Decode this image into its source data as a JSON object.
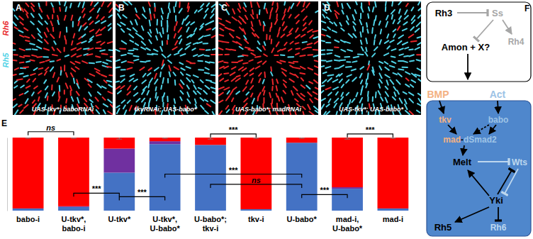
{
  "panels": [
    {
      "letter": "A",
      "caption": "UAS-tkv*; baboRNAi"
    },
    {
      "letter": "B",
      "caption": "tkvRNAi; UAS-babo*"
    },
    {
      "letter": "C",
      "caption": "UAS-babo*; madRNAi"
    },
    {
      "letter": "D",
      "caption": "UAS-tkv*; UAS-babo*"
    }
  ],
  "channel_labels": [
    "Rh6",
    "Rh5"
  ],
  "chart_data": {
    "type": "bar",
    "title": "E",
    "stacked": true,
    "tick_labels": "x",
    "categories": [
      "babo-i",
      "U-tkv*, babo-i",
      "U-tkv*",
      "U-tkv*, U-babo*",
      "U-babo*; tkv-i",
      "tkv-i",
      "U-babo*",
      "mad-i, U-babo*",
      "mad-i"
    ],
    "series": [
      {
        "color": "#4472c4",
        "values": [
          3,
          5,
          52,
          91,
          90,
          2,
          93,
          30,
          3
        ]
      },
      {
        "color": "#7030a0",
        "values": [
          0,
          1,
          33,
          4,
          0,
          0,
          0,
          2,
          0
        ]
      },
      {
        "color": "#ff0000",
        "values": [
          97,
          94,
          15,
          5,
          10,
          98,
          7,
          68,
          97
        ],
        "error": [
          1,
          1,
          2,
          1,
          2,
          1,
          1,
          2,
          1
        ]
      }
    ],
    "ylim": [
      0,
      100
    ],
    "annotations": [
      {
        "text": "ns",
        "from": 0,
        "to": 1
      },
      {
        "text": "***",
        "from": 4,
        "to": 5
      },
      {
        "text": "***",
        "from": 7,
        "to": 8
      },
      {
        "text": "***",
        "from": 1,
        "to": 2
      },
      {
        "text": "***",
        "from": 2,
        "to": 3
      },
      {
        "text": "***",
        "from": 3,
        "to": 6
      },
      {
        "text": "ns",
        "from": 4,
        "to": 6
      },
      {
        "text": "***",
        "from": 6,
        "to": 7
      }
    ]
  },
  "diagram": {
    "letter": "F",
    "nodes": [
      "Rh3",
      "Ss",
      "Rh4",
      "Amon + X?",
      "BMP",
      "Act",
      "tkv",
      "babo",
      "mad-dSmad2",
      "Melt",
      "Wts",
      "Yki",
      "Rh5",
      "Rh6"
    ]
  }
}
